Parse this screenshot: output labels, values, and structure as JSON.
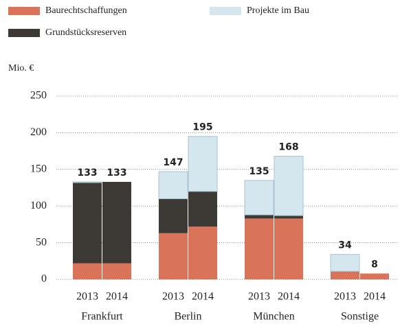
{
  "chart_data": {
    "type": "stacked-bar",
    "y_label": "Mio. €",
    "categories": [
      "2013",
      "2014",
      "2013",
      "2014",
      "2013",
      "2014",
      "2013",
      "2014"
    ],
    "groups": [
      "Frankfurt",
      "Berlin",
      "München",
      "Sonstige"
    ],
    "series": [
      {
        "name": "Baurechtschaffungen",
        "color": "#d9735a",
        "values": [
          22,
          22,
          63,
          72,
          83,
          83,
          11,
          8
        ]
      },
      {
        "name": "Grundstücksreserven",
        "color": "#3d3935",
        "values": [
          110,
          111,
          47,
          48,
          5,
          4,
          0,
          0
        ]
      },
      {
        "name": "Projekte im Bau",
        "color": "#d4e6ee",
        "values": [
          1,
          0,
          37,
          75,
          47,
          81,
          23,
          0
        ]
      }
    ],
    "totals": [
      133,
      133,
      147,
      195,
      135,
      168,
      34,
      8
    ],
    "ylim": [
      0,
      250
    ],
    "yticks": [
      0,
      50,
      100,
      150,
      200,
      250
    ],
    "grid": true
  }
}
